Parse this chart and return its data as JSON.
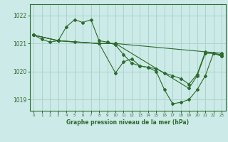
{
  "bg_color": "#cceae7",
  "line_color": "#2d6a2d",
  "grid_color": "#aad4cc",
  "title": "Graphe pression niveau de la mer (hPa)",
  "ylabel_ticks": [
    1019,
    1020,
    1021,
    1022
  ],
  "xlim": [
    -0.5,
    23.5
  ],
  "ylim": [
    1018.6,
    1022.4
  ],
  "series": [
    {
      "x": [
        0,
        1,
        2,
        3,
        4,
        5,
        6,
        7,
        8,
        9,
        10,
        11,
        12,
        13,
        14,
        15,
        16,
        17,
        18,
        19,
        20,
        21,
        22,
        23
      ],
      "y": [
        1021.3,
        1021.15,
        1021.05,
        1021.1,
        1021.6,
        1021.85,
        1021.75,
        1021.85,
        1021.1,
        1021.05,
        1020.95,
        1020.6,
        1020.3,
        1020.2,
        1020.15,
        1020.1,
        1019.95,
        1019.85,
        1019.75,
        1019.55,
        1019.9,
        1020.7,
        1020.65,
        1020.6
      ]
    },
    {
      "x": [
        0,
        3,
        5,
        8,
        10,
        11,
        12,
        13,
        14,
        15,
        16,
        17,
        18,
        19,
        20,
        21,
        22,
        23
      ],
      "y": [
        1021.3,
        1021.1,
        1021.05,
        1021.0,
        1019.95,
        1020.35,
        1020.45,
        1020.2,
        1020.15,
        1020.0,
        1019.35,
        1018.85,
        1018.9,
        1019.0,
        1019.35,
        1019.85,
        1020.65,
        1020.55
      ]
    },
    {
      "x": [
        0,
        3,
        8,
        10,
        23
      ],
      "y": [
        1021.3,
        1021.1,
        1021.0,
        1021.0,
        1020.65
      ]
    },
    {
      "x": [
        0,
        3,
        8,
        10,
        19,
        20,
        21,
        22,
        23
      ],
      "y": [
        1021.3,
        1021.1,
        1021.0,
        1021.0,
        1019.4,
        1019.85,
        1020.65,
        1020.65,
        1020.55
      ]
    }
  ]
}
